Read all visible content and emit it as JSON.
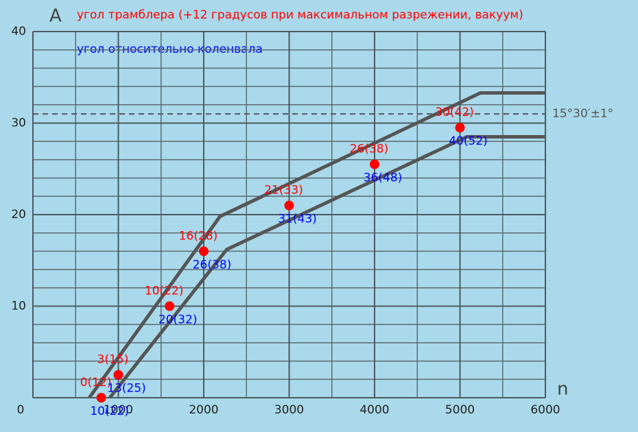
{
  "chart_data": {
    "type": "advance-band",
    "title": "угол трамблера (+12 градусов при максимальном разрежении, вакуум)",
    "subtitle": "угол относительно коленвала",
    "y_label": "A",
    "x_label": "n",
    "title_color": "#ff0000",
    "subtitle_color": "#0000ff",
    "xlim": [
      0,
      6000
    ],
    "ylim": [
      0,
      40
    ],
    "xticks": [
      0,
      1000,
      2000,
      3000,
      4000,
      5000,
      6000
    ],
    "yticks": [
      0,
      10,
      20,
      30,
      40
    ],
    "grid": true,
    "minor_grid_step": {
      "x": 500,
      "y": 2
    },
    "reference": {
      "value": 31,
      "label": "15°30′±1°"
    },
    "band": {
      "color": "#555555",
      "upper": {
        "x": [
          660,
          2190,
          5240,
          6000
        ],
        "y": [
          0,
          19.8,
          33.3,
          33.3
        ]
      },
      "lower": {
        "x": [
          900,
          2270,
          5080,
          6000
        ],
        "y": [
          0,
          16.2,
          28.5,
          28.5
        ]
      }
    },
    "points": {
      "color": "#ff0000",
      "x": [
        800,
        1000,
        1600,
        2000,
        3000,
        4000,
        5000
      ],
      "values": [
        0,
        2.5,
        10,
        16,
        21,
        25.5,
        29.5
      ],
      "value_labels": [
        "0(12)",
        "3(15)",
        "10(22)",
        "16(28)",
        "21(33)",
        "26(38)",
        "30(42)"
      ],
      "crank_labels": [
        "10(22)",
        "13(25)",
        "20(32)",
        "26(38)",
        "31(43)",
        "36(48)",
        "40(52)"
      ],
      "crank_color": "#0000ff"
    }
  }
}
